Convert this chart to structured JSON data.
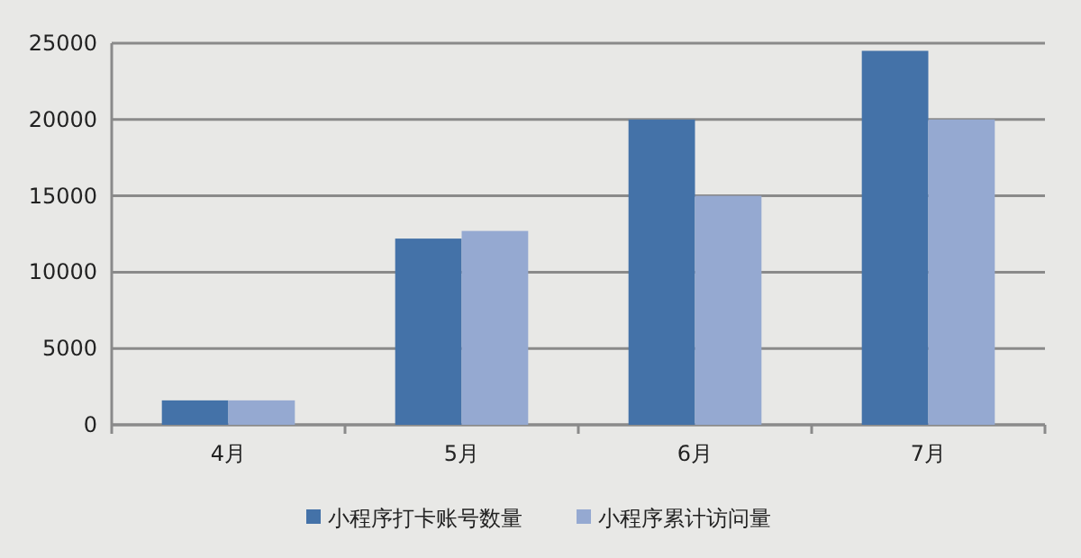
{
  "chart_data": {
    "type": "bar",
    "categories": [
      "4月",
      "5月",
      "6月",
      "7月"
    ],
    "series": [
      {
        "name": "小程序打卡账号数量",
        "color": "#4472a8",
        "values": [
          1600,
          12200,
          20000,
          24500
        ]
      },
      {
        "name": "小程序累计访问量",
        "color": "#95a9d1",
        "values": [
          1600,
          12700,
          15000,
          20000
        ]
      }
    ],
    "ylim": [
      0,
      25000
    ],
    "yticks": [
      0,
      5000,
      10000,
      15000,
      20000,
      25000
    ],
    "grid": "y",
    "legend": "bottom"
  }
}
